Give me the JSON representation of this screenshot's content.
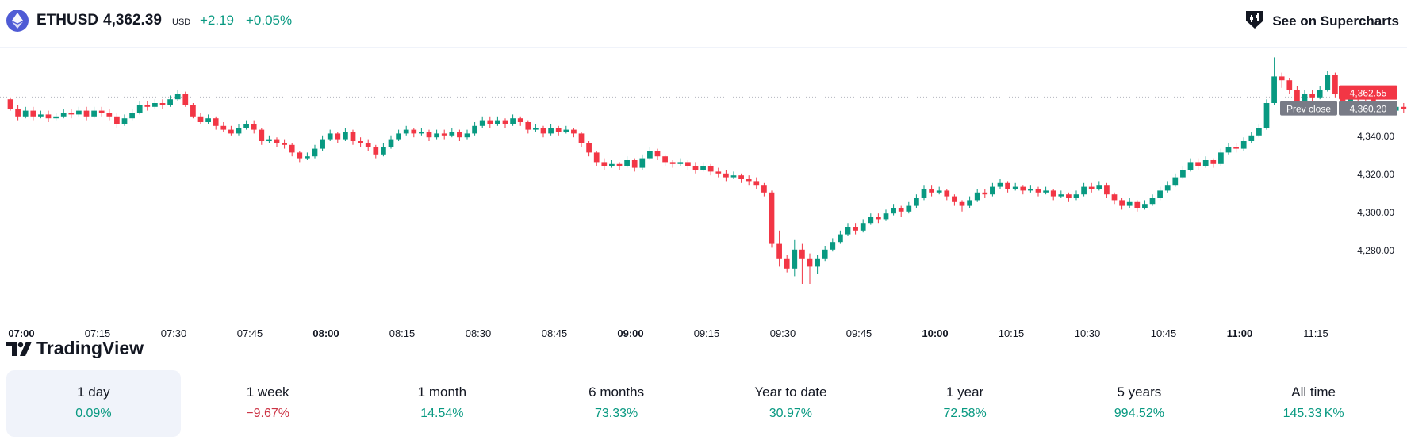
{
  "header": {
    "symbol": "ETHUSD",
    "price": "4,362.39",
    "currency": "USD",
    "change": "+2.19",
    "change_pct": "+0.05%",
    "supercharts_label": "See on Supercharts"
  },
  "branding": {
    "logo_text": "TradingView"
  },
  "colors": {
    "up": "#089981",
    "down": "#f23645",
    "prev_close_line": "#b2b5be"
  },
  "chart_data": {
    "type": "candlestick",
    "symbol": "ETHUSD",
    "interval_minutes": 1.5,
    "x_start": "07:00",
    "x_ticks": [
      "07:00",
      "07:15",
      "07:30",
      "07:45",
      "08:00",
      "08:15",
      "08:30",
      "08:45",
      "09:00",
      "09:15",
      "09:30",
      "09:45",
      "10:00",
      "10:15",
      "10:30",
      "10:45",
      "11:00",
      "11:15"
    ],
    "x_bold_ticks": [
      "07:00",
      "08:00",
      "09:00",
      "10:00",
      "11:00"
    ],
    "y_ticks": [
      "4,280.00",
      "4,300.00",
      "4,320.00",
      "4,340.00"
    ],
    "y_tick_values": [
      4280,
      4300,
      4320,
      4340
    ],
    "ylim": [
      4262,
      4382
    ],
    "prev_close": 4360.2,
    "prev_close_label": "Prev close",
    "prev_close_text": "4,360.20",
    "last_price": 4362.55,
    "last_price_text": "4,362.55",
    "candles": [
      [
        4359,
        4354,
        4360,
        4353
      ],
      [
        4354,
        4350,
        4356,
        4348
      ],
      [
        4350,
        4353,
        4355,
        4349
      ],
      [
        4353,
        4350,
        4355,
        4348
      ],
      [
        4350,
        4351,
        4353,
        4349
      ],
      [
        4351,
        4349,
        4353,
        4347
      ],
      [
        4349,
        4350,
        4352,
        4348
      ],
      [
        4350,
        4352,
        4354,
        4349
      ],
      [
        4352,
        4351,
        4354,
        4349
      ],
      [
        4351,
        4353,
        4355,
        4350
      ],
      [
        4353,
        4350,
        4355,
        4348
      ],
      [
        4350,
        4353,
        4355,
        4349
      ],
      [
        4353,
        4352,
        4355,
        4350
      ],
      [
        4352,
        4350,
        4354,
        4348
      ],
      [
        4350,
        4346,
        4352,
        4344
      ],
      [
        4346,
        4349,
        4351,
        4345
      ],
      [
        4349,
        4352,
        4354,
        4348
      ],
      [
        4352,
        4356,
        4358,
        4351
      ],
      [
        4356,
        4355,
        4358,
        4353
      ],
      [
        4355,
        4357,
        4359,
        4354
      ],
      [
        4357,
        4356,
        4359,
        4354
      ],
      [
        4356,
        4359,
        4361,
        4355
      ],
      [
        4359,
        4362,
        4364,
        4358
      ],
      [
        4362,
        4356,
        4363,
        4355
      ],
      [
        4356,
        4350,
        4357,
        4349
      ],
      [
        4350,
        4347,
        4352,
        4346
      ],
      [
        4347,
        4349,
        4351,
        4346
      ],
      [
        4349,
        4345,
        4350,
        4343
      ],
      [
        4345,
        4343,
        4347,
        4342
      ],
      [
        4343,
        4341,
        4345,
        4340
      ],
      [
        4341,
        4344,
        4346,
        4340
      ],
      [
        4344,
        4346,
        4348,
        4343
      ],
      [
        4346,
        4343,
        4348,
        4341
      ],
      [
        4343,
        4337,
        4344,
        4335
      ],
      [
        4337,
        4338,
        4340,
        4336
      ],
      [
        4338,
        4336,
        4339,
        4334
      ],
      [
        4336,
        4335,
        4338,
        4333
      ],
      [
        4335,
        4331,
        4336,
        4329
      ],
      [
        4331,
        4328,
        4332,
        4326
      ],
      [
        4328,
        4329,
        4331,
        4327
      ],
      [
        4329,
        4333,
        4335,
        4328
      ],
      [
        4333,
        4338,
        4340,
        4332
      ],
      [
        4338,
        4341,
        4343,
        4337
      ],
      [
        4341,
        4338,
        4342,
        4336
      ],
      [
        4338,
        4342,
        4344,
        4337
      ],
      [
        4342,
        4337,
        4343,
        4335
      ],
      [
        4337,
        4336,
        4339,
        4334
      ],
      [
        4336,
        4334,
        4338,
        4332
      ],
      [
        4334,
        4330,
        4335,
        4328
      ],
      [
        4330,
        4334,
        4336,
        4329
      ],
      [
        4334,
        4338,
        4340,
        4333
      ],
      [
        4338,
        4341,
        4343,
        4337
      ],
      [
        4341,
        4343,
        4345,
        4340
      ],
      [
        4343,
        4341,
        4344,
        4339
      ],
      [
        4341,
        4342,
        4344,
        4340
      ],
      [
        4342,
        4339,
        4343,
        4337
      ],
      [
        4339,
        4341,
        4343,
        4338
      ],
      [
        4341,
        4340,
        4343,
        4338
      ],
      [
        4340,
        4342,
        4344,
        4339
      ],
      [
        4342,
        4339,
        4343,
        4337
      ],
      [
        4339,
        4341,
        4343,
        4338
      ],
      [
        4341,
        4345,
        4347,
        4340
      ],
      [
        4345,
        4348,
        4350,
        4344
      ],
      [
        4348,
        4346,
        4350,
        4344
      ],
      [
        4346,
        4348,
        4350,
        4345
      ],
      [
        4348,
        4346,
        4349,
        4344
      ],
      [
        4346,
        4349,
        4351,
        4345
      ],
      [
        4349,
        4347,
        4350,
        4345
      ],
      [
        4347,
        4343,
        4348,
        4341
      ],
      [
        4343,
        4344,
        4346,
        4342
      ],
      [
        4344,
        4341,
        4345,
        4339
      ],
      [
        4341,
        4344,
        4346,
        4340
      ],
      [
        4344,
        4342,
        4345,
        4340
      ],
      [
        4342,
        4343,
        4345,
        4341
      ],
      [
        4343,
        4341,
        4344,
        4339
      ],
      [
        4341,
        4336,
        4342,
        4334
      ],
      [
        4336,
        4331,
        4337,
        4329
      ],
      [
        4331,
        4326,
        4332,
        4324
      ],
      [
        4326,
        4324,
        4328,
        4322
      ],
      [
        4324,
        4325,
        4327,
        4323
      ],
      [
        4325,
        4324,
        4326,
        4322
      ],
      [
        4324,
        4327,
        4329,
        4323
      ],
      [
        4327,
        4323,
        4328,
        4321
      ],
      [
        4323,
        4328,
        4330,
        4322
      ],
      [
        4328,
        4332,
        4334,
        4327
      ],
      [
        4332,
        4329,
        4333,
        4327
      ],
      [
        4329,
        4326,
        4330,
        4324
      ],
      [
        4326,
        4325,
        4327,
        4323
      ],
      [
        4325,
        4326,
        4328,
        4324
      ],
      [
        4326,
        4324,
        4327,
        4322
      ],
      [
        4324,
        4322,
        4326,
        4320
      ],
      [
        4322,
        4324,
        4326,
        4321
      ],
      [
        4324,
        4321,
        4325,
        4319
      ],
      [
        4321,
        4320,
        4323,
        4318
      ],
      [
        4320,
        4318,
        4322,
        4316
      ],
      [
        4318,
        4319,
        4321,
        4317
      ],
      [
        4319,
        4317,
        4320,
        4315
      ],
      [
        4317,
        4316,
        4319,
        4314
      ],
      [
        4316,
        4314,
        4318,
        4312
      ],
      [
        4314,
        4310,
        4315,
        4308
      ],
      [
        4310,
        4283,
        4311,
        4281
      ],
      [
        4283,
        4275,
        4290,
        4271
      ],
      [
        4275,
        4270,
        4277,
        4268
      ],
      [
        4270,
        4280,
        4285,
        4266
      ],
      [
        4280,
        4275,
        4283,
        4262
      ],
      [
        4275,
        4271,
        4278,
        4262
      ],
      [
        4271,
        4275,
        4277,
        4267
      ],
      [
        4275,
        4280,
        4282,
        4274
      ],
      [
        4280,
        4284,
        4286,
        4279
      ],
      [
        4284,
        4288,
        4290,
        4283
      ],
      [
        4288,
        4292,
        4294,
        4287
      ],
      [
        4292,
        4290,
        4294,
        4288
      ],
      [
        4290,
        4294,
        4296,
        4289
      ],
      [
        4294,
        4297,
        4299,
        4293
      ],
      [
        4297,
        4296,
        4299,
        4294
      ],
      [
        4296,
        4299,
        4301,
        4295
      ],
      [
        4299,
        4302,
        4304,
        4298
      ],
      [
        4302,
        4300,
        4303,
        4297
      ],
      [
        4300,
        4303,
        4305,
        4299
      ],
      [
        4303,
        4307,
        4309,
        4302
      ],
      [
        4307,
        4312,
        4314,
        4306
      ],
      [
        4312,
        4310,
        4314,
        4308
      ],
      [
        4310,
        4311,
        4313,
        4309
      ],
      [
        4311,
        4308,
        4312,
        4306
      ],
      [
        4308,
        4305,
        4309,
        4303
      ],
      [
        4305,
        4303,
        4306,
        4300
      ],
      [
        4303,
        4306,
        4308,
        4302
      ],
      [
        4306,
        4310,
        4312,
        4305
      ],
      [
        4310,
        4309,
        4312,
        4307
      ],
      [
        4309,
        4313,
        4315,
        4308
      ],
      [
        4313,
        4315,
        4317,
        4312
      ],
      [
        4315,
        4312,
        4316,
        4310
      ],
      [
        4312,
        4313,
        4315,
        4311
      ],
      [
        4313,
        4311,
        4314,
        4309
      ],
      [
        4311,
        4312,
        4314,
        4310
      ],
      [
        4312,
        4310,
        4313,
        4308
      ],
      [
        4310,
        4311,
        4313,
        4309
      ],
      [
        4311,
        4308,
        4312,
        4306
      ],
      [
        4308,
        4309,
        4311,
        4307
      ],
      [
        4309,
        4307,
        4310,
        4305
      ],
      [
        4307,
        4309,
        4311,
        4306
      ],
      [
        4309,
        4313,
        4315,
        4308
      ],
      [
        4313,
        4312,
        4315,
        4310
      ],
      [
        4312,
        4314,
        4316,
        4311
      ],
      [
        4314,
        4309,
        4315,
        4307
      ],
      [
        4309,
        4306,
        4310,
        4304
      ],
      [
        4306,
        4303,
        4307,
        4301
      ],
      [
        4303,
        4305,
        4307,
        4302
      ],
      [
        4305,
        4302,
        4306,
        4300
      ],
      [
        4302,
        4304,
        4306,
        4301
      ],
      [
        4304,
        4307,
        4309,
        4303
      ],
      [
        4307,
        4311,
        4313,
        4306
      ],
      [
        4311,
        4314,
        4316,
        4310
      ],
      [
        4314,
        4318,
        4320,
        4313
      ],
      [
        4318,
        4322,
        4324,
        4317
      ],
      [
        4322,
        4326,
        4328,
        4321
      ],
      [
        4326,
        4324,
        4328,
        4322
      ],
      [
        4324,
        4327,
        4329,
        4323
      ],
      [
        4327,
        4325,
        4328,
        4323
      ],
      [
        4325,
        4331,
        4333,
        4324
      ],
      [
        4331,
        4334,
        4336,
        4330
      ],
      [
        4334,
        4333,
        4336,
        4331
      ],
      [
        4333,
        4337,
        4339,
        4332
      ],
      [
        4337,
        4340,
        4342,
        4336
      ],
      [
        4340,
        4344,
        4346,
        4339
      ],
      [
        4344,
        4357,
        4359,
        4343
      ],
      [
        4357,
        4371,
        4381,
        4356
      ],
      [
        4371,
        4369,
        4373,
        4365
      ],
      [
        4369,
        4364,
        4370,
        4362
      ],
      [
        4364,
        4358,
        4366,
        4356
      ],
      [
        4358,
        4362,
        4364,
        4357
      ],
      [
        4362,
        4360,
        4364,
        4358
      ],
      [
        4360,
        4364,
        4366,
        4359
      ],
      [
        4364,
        4372,
        4374,
        4363
      ],
      [
        4372,
        4362,
        4373,
        4360
      ],
      [
        4362,
        4358,
        4364,
        4356
      ],
      [
        4358,
        4362,
        4364,
        4357
      ],
      [
        4362,
        4360,
        4364,
        4358
      ],
      [
        4360,
        4359,
        4362,
        4357
      ],
      [
        4359,
        4357,
        4361,
        4355
      ],
      [
        4357,
        4354,
        4358,
        4352
      ],
      [
        4354,
        4353,
        4356,
        4351
      ],
      [
        4353,
        4355,
        4357,
        4352
      ],
      [
        4355,
        4354,
        4357,
        4352
      ],
      [
        4354,
        4357,
        4359,
        4353
      ],
      [
        4357,
        4353,
        4358,
        4351
      ],
      [
        4353,
        4354,
        4356,
        4352
      ],
      [
        4354,
        4356,
        4358,
        4353
      ],
      [
        4356,
        4359,
        4361,
        4355
      ],
      [
        4359,
        4361,
        4363,
        4358
      ],
      [
        4361,
        4356,
        4362,
        4354
      ],
      [
        4356,
        4353,
        4357,
        4351
      ],
      [
        4353,
        4354,
        4356,
        4352
      ],
      [
        4354,
        4352,
        4355,
        4350
      ],
      [
        4352,
        4355,
        4357,
        4351
      ],
      [
        4355,
        4354,
        4357,
        4352
      ],
      [
        4354,
        4356,
        4358,
        4353
      ],
      [
        4356,
        4358,
        4360,
        4355
      ],
      [
        4358,
        4361,
        4363,
        4357
      ],
      [
        4361,
        4359,
        4363,
        4357
      ],
      [
        4359,
        4357,
        4361,
        4355
      ],
      [
        4357,
        4360,
        4362,
        4356
      ],
      [
        4360,
        4363,
        4365,
        4359
      ],
      [
        4363,
        4362,
        4364,
        4360
      ],
      [
        4362,
        4363,
        4364,
        4361
      ]
    ]
  },
  "periods": [
    {
      "label": "1 day",
      "value": "0.09%",
      "trend": "pos",
      "active": true
    },
    {
      "label": "1 week",
      "value": "−9.67%",
      "trend": "neg",
      "active": false
    },
    {
      "label": "1 month",
      "value": "14.54%",
      "trend": "pos",
      "active": false
    },
    {
      "label": "6 months",
      "value": "73.33%",
      "trend": "pos",
      "active": false
    },
    {
      "label": "Year to date",
      "value": "30.97%",
      "trend": "pos",
      "active": false
    },
    {
      "label": "1 year",
      "value": "72.58%",
      "trend": "pos",
      "active": false
    },
    {
      "label": "5 years",
      "value": "994.52%",
      "trend": "pos",
      "active": false
    },
    {
      "label": "All time",
      "value": "145.33 K%",
      "trend": "pos",
      "active": false
    }
  ]
}
